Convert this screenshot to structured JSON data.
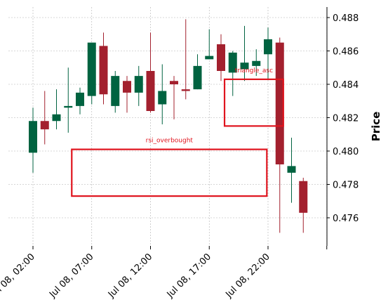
{
  "chart_data": {
    "type": "candlestick",
    "title": "",
    "xlabel": "",
    "ylabel": "Price",
    "ylim": [
      0.4744,
      0.4884
    ],
    "grid": true,
    "y_axis_side": "right",
    "colors": {
      "up": "#006340",
      "down": "#a3202e",
      "annotation": "#e0141e",
      "grid": "#b0b0b0"
    },
    "x_ticks": [
      {
        "index": 0,
        "label": "Jul 08, 02:00"
      },
      {
        "index": 5,
        "label": "Jul 08, 07:00"
      },
      {
        "index": 10,
        "label": "Jul 08, 12:00"
      },
      {
        "index": 15,
        "label": "Jul 08, 17:00"
      },
      {
        "index": 20,
        "label": "Jul 08, 22:00"
      },
      {
        "index": 25,
        "label": ""
      }
    ],
    "y_ticks": [
      0.476,
      0.478,
      0.48,
      0.482,
      0.484,
      0.486,
      0.488
    ],
    "y_tick_labels": [
      "0.476",
      "0.478",
      "0.480",
      "0.482",
      "0.484",
      "0.486",
      "0.488"
    ],
    "candles": [
      {
        "time": "Jul 08, 02:00",
        "open": 0.4799,
        "high": 0.4826,
        "low": 0.4787,
        "close": 0.4818
      },
      {
        "time": "Jul 08, 03:00",
        "open": 0.4818,
        "high": 0.4836,
        "low": 0.4804,
        "close": 0.4813
      },
      {
        "time": "Jul 08, 04:00",
        "open": 0.4818,
        "high": 0.4837,
        "low": 0.4813,
        "close": 0.4822
      },
      {
        "time": "Jul 08, 05:00",
        "open": 0.4826,
        "high": 0.485,
        "low": 0.4811,
        "close": 0.4827
      },
      {
        "time": "Jul 08, 06:00",
        "open": 0.4827,
        "high": 0.4838,
        "low": 0.4822,
        "close": 0.4835
      },
      {
        "time": "Jul 08, 07:00",
        "open": 0.4833,
        "high": 0.4865,
        "low": 0.4828,
        "close": 0.4865
      },
      {
        "time": "Jul 08, 08:00",
        "open": 0.4863,
        "high": 0.4871,
        "low": 0.4828,
        "close": 0.4834
      },
      {
        "time": "Jul 08, 09:00",
        "open": 0.4827,
        "high": 0.4848,
        "low": 0.4823,
        "close": 0.4845
      },
      {
        "time": "Jul 08, 10:00",
        "open": 0.4842,
        "high": 0.4845,
        "low": 0.4823,
        "close": 0.4835
      },
      {
        "time": "Jul 08, 11:00",
        "open": 0.4835,
        "high": 0.4851,
        "low": 0.4827,
        "close": 0.4845
      },
      {
        "time": "Jul 08, 12:00",
        "open": 0.4848,
        "high": 0.4871,
        "low": 0.4823,
        "close": 0.4824
      },
      {
        "time": "Jul 08, 13:00",
        "open": 0.4828,
        "high": 0.4852,
        "low": 0.4816,
        "close": 0.4836
      },
      {
        "time": "Jul 08, 14:00",
        "open": 0.4842,
        "high": 0.4845,
        "low": 0.4819,
        "close": 0.484
      },
      {
        "time": "Jul 08, 15:00",
        "open": 0.4837,
        "high": 0.4879,
        "low": 0.4831,
        "close": 0.4836
      },
      {
        "time": "Jul 08, 16:00",
        "open": 0.4837,
        "high": 0.4858,
        "low": 0.4837,
        "close": 0.4851
      },
      {
        "time": "Jul 08, 17:00",
        "open": 0.4855,
        "high": 0.4873,
        "low": 0.4855,
        "close": 0.4857
      },
      {
        "time": "Jul 08, 18:00",
        "open": 0.4864,
        "high": 0.487,
        "low": 0.4842,
        "close": 0.4848
      },
      {
        "time": "Jul 08, 19:00",
        "open": 0.4847,
        "high": 0.486,
        "low": 0.4833,
        "close": 0.4859
      },
      {
        "time": "Jul 08, 20:00",
        "open": 0.4849,
        "high": 0.4875,
        "low": 0.4842,
        "close": 0.4853
      },
      {
        "time": "Jul 08, 21:00",
        "open": 0.4851,
        "high": 0.4861,
        "low": 0.4845,
        "close": 0.4854
      },
      {
        "time": "Jul 08, 22:00",
        "open": 0.4858,
        "high": 0.4874,
        "low": 0.4843,
        "close": 0.4867
      },
      {
        "time": "Jul 08, 23:00",
        "open": 0.4865,
        "high": 0.4868,
        "low": 0.4751,
        "close": 0.4792
      },
      {
        "time": "Jul 09, 00:00",
        "open": 0.4787,
        "high": 0.4808,
        "low": 0.4769,
        "close": 0.4791
      },
      {
        "time": "Jul 09, 01:00",
        "open": 0.4782,
        "high": 0.4784,
        "low": 0.4751,
        "close": 0.4763
      }
    ],
    "annotations": [
      {
        "label": "triangle_asc",
        "x_start": 16.3,
        "x_end": 21.3,
        "y_low": 0.4815,
        "y_high": 0.4843
      },
      {
        "label": "rsi_overbought",
        "x_start": 3.3,
        "x_end": 19.9,
        "y_low": 0.4773,
        "y_high": 0.4801
      }
    ]
  }
}
